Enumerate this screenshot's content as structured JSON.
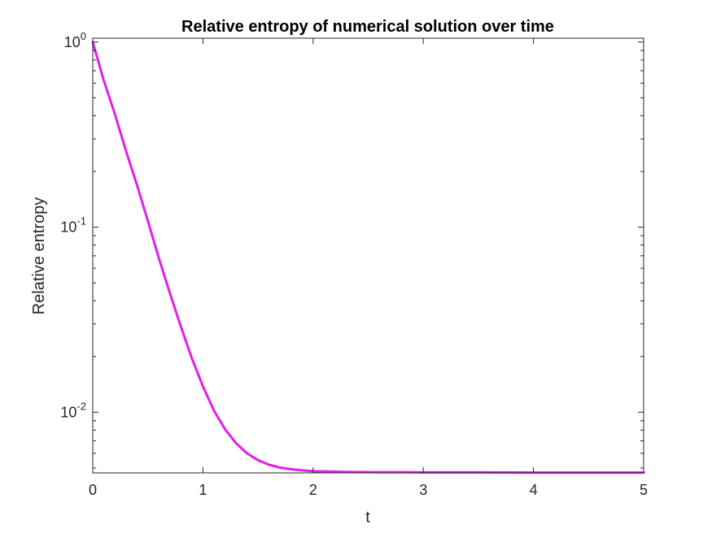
{
  "chart_data": {
    "type": "line",
    "title": "Relative entropy of numerical solution over time",
    "xlabel": "t",
    "ylabel": "Relative entropy",
    "xlim": [
      0,
      5
    ],
    "ylim": [
      0.0047,
      1.05
    ],
    "yscale": "log",
    "grid": false,
    "x_ticks": [
      {
        "value": 0,
        "label": "0"
      },
      {
        "value": 1,
        "label": "1"
      },
      {
        "value": 2,
        "label": "2"
      },
      {
        "value": 3,
        "label": "3"
      },
      {
        "value": 4,
        "label": "4"
      },
      {
        "value": 5,
        "label": "5"
      }
    ],
    "y_ticks": [
      {
        "value": 1,
        "base": "10",
        "exp": "0"
      },
      {
        "value": 0.1,
        "base": "10",
        "exp": "-1"
      },
      {
        "value": 0.01,
        "base": "10",
        "exp": "-2"
      }
    ],
    "series": [
      {
        "color": "#e11fe8",
        "x": [
          0,
          0.1,
          0.2,
          0.3,
          0.4,
          0.5,
          0.6,
          0.7,
          0.8,
          0.9,
          1.0,
          1.1,
          1.2,
          1.3,
          1.4,
          1.5,
          1.6,
          1.7,
          1.8,
          1.9,
          2.0,
          2.2,
          2.4,
          2.6,
          2.8,
          3.0,
          3.5,
          4.0,
          4.5,
          5.0
        ],
        "y": [
          1.0,
          0.62,
          0.41,
          0.26,
          0.17,
          0.108,
          0.068,
          0.044,
          0.029,
          0.0195,
          0.0138,
          0.0102,
          0.0081,
          0.0068,
          0.006,
          0.0055,
          0.0052,
          0.00502,
          0.00492,
          0.00485,
          0.0048,
          0.00477,
          0.00475,
          0.00474,
          0.00474,
          0.00473,
          0.00473,
          0.00472,
          0.00472,
          0.00472
        ]
      }
    ]
  }
}
